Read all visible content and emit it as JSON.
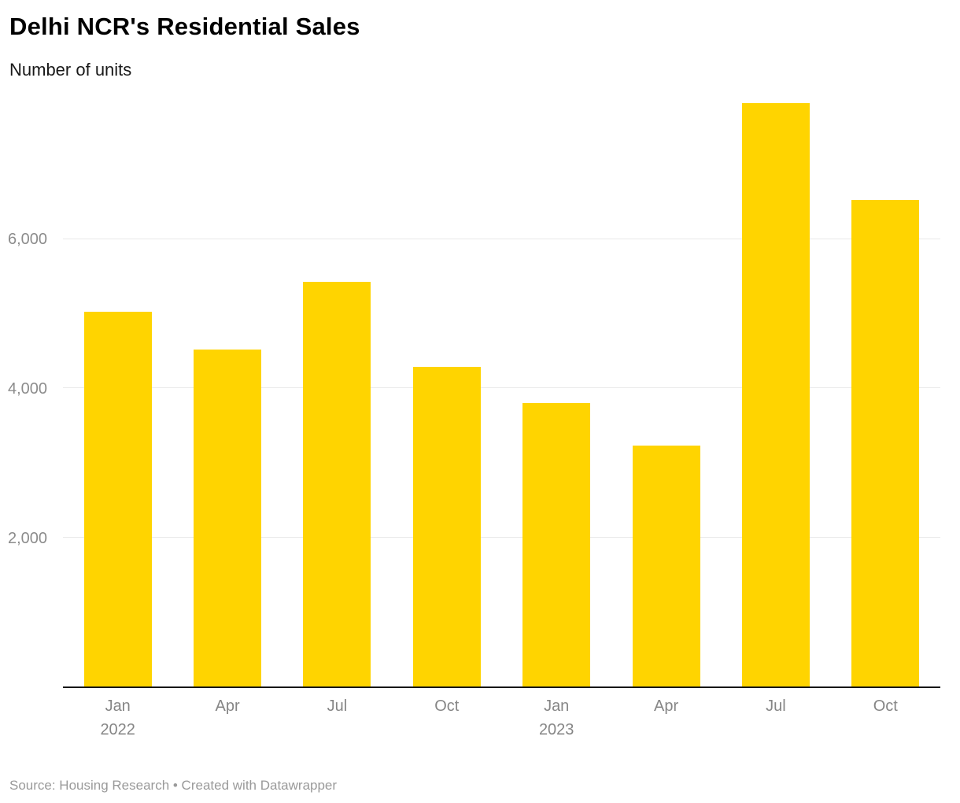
{
  "header": {
    "title": "Delhi NCR's Residential Sales",
    "subtitle": "Number of units"
  },
  "footer": {
    "source": "Source: Housing Research • Created with Datawrapper"
  },
  "colors": {
    "bar": "#FFD400",
    "grid": "#e9e9e9",
    "axis_line": "#161616",
    "tick_label": "#8c8c8c"
  },
  "chart_data": {
    "type": "bar",
    "title": "Delhi NCR's Residential Sales",
    "ylabel": "Number of units",
    "categories": [
      "Jan 2022",
      "Apr 2022",
      "Jul 2022",
      "Oct 2022",
      "Jan 2023",
      "Apr 2023",
      "Jul 2023",
      "Oct 2023"
    ],
    "x_tick_lines": [
      [
        "Jan",
        "2022"
      ],
      [
        "Apr"
      ],
      [
        "Jul"
      ],
      [
        "Oct"
      ],
      [
        "Jan",
        "2023"
      ],
      [
        "Apr"
      ],
      [
        "Jul"
      ],
      [
        "Oct"
      ]
    ],
    "values": [
      5020,
      4520,
      5430,
      4290,
      3800,
      3230,
      7820,
      6520
    ],
    "ylim": [
      0,
      8000
    ],
    "yticks": [
      2000,
      4000,
      6000
    ],
    "ytick_labels": [
      "2,000",
      "4,000",
      "6,000"
    ],
    "grid": true,
    "legend": false,
    "source": "Source: Housing Research • Created with Datawrapper"
  }
}
